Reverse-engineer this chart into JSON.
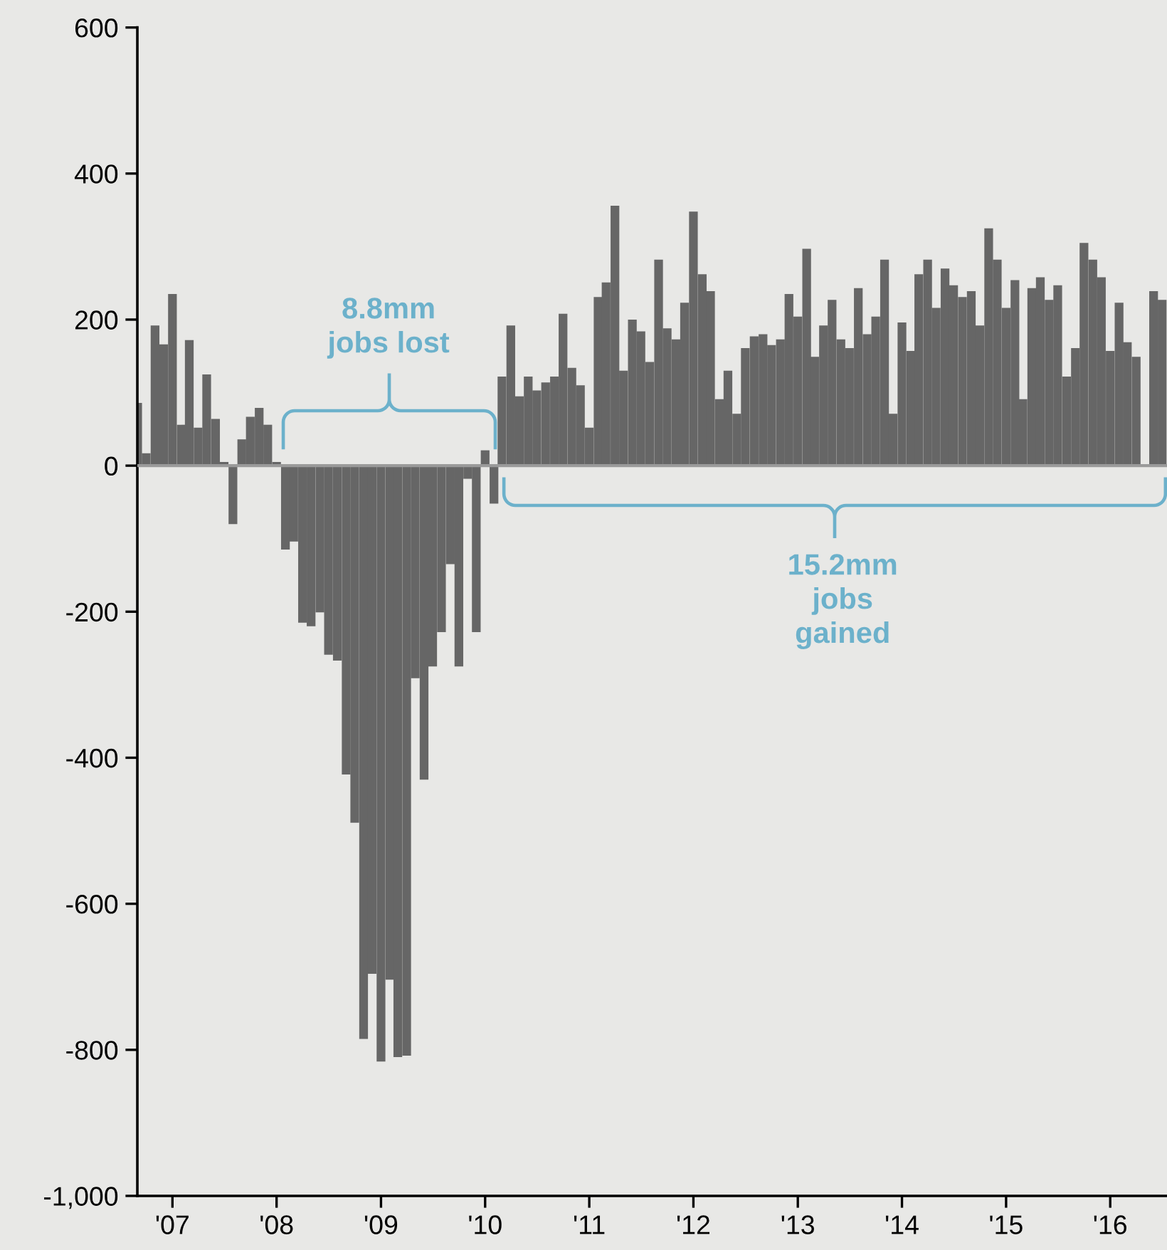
{
  "chart_data": {
    "type": "bar",
    "x": [
      "2006-09",
      "2006-10",
      "2006-11",
      "2006-12",
      "2007-01",
      "2007-02",
      "2007-03",
      "2007-04",
      "2007-05",
      "2007-06",
      "2007-07",
      "2007-08",
      "2007-09",
      "2007-10",
      "2007-11",
      "2007-12",
      "2008-01",
      "2008-02",
      "2008-03",
      "2008-04",
      "2008-05",
      "2008-06",
      "2008-07",
      "2008-08",
      "2008-09",
      "2008-10",
      "2008-11",
      "2008-12",
      "2009-01",
      "2009-02",
      "2009-03",
      "2009-04",
      "2009-05",
      "2009-06",
      "2009-07",
      "2009-08",
      "2009-09",
      "2009-10",
      "2009-11",
      "2009-12",
      "2010-01",
      "2010-02",
      "2010-03",
      "2010-04",
      "2010-05",
      "2010-06",
      "2010-07",
      "2010-08",
      "2010-09",
      "2010-10",
      "2010-11",
      "2010-12",
      "2011-01",
      "2011-02",
      "2011-03",
      "2011-04",
      "2011-05",
      "2011-06",
      "2011-07",
      "2011-08",
      "2011-09",
      "2011-10",
      "2011-11",
      "2011-12",
      "2012-01",
      "2012-02",
      "2012-03",
      "2012-04",
      "2012-05",
      "2012-06",
      "2012-07",
      "2012-08",
      "2012-09",
      "2012-10",
      "2012-11",
      "2012-12",
      "2013-01",
      "2013-02",
      "2013-03",
      "2013-04",
      "2013-05",
      "2013-06",
      "2013-07",
      "2013-08",
      "2013-09",
      "2013-10",
      "2013-11",
      "2013-12",
      "2014-01",
      "2014-02",
      "2014-03",
      "2014-04",
      "2014-05",
      "2014-06",
      "2014-07",
      "2014-08",
      "2014-09",
      "2014-10",
      "2014-11",
      "2014-12",
      "2015-01",
      "2015-02",
      "2015-03",
      "2015-04",
      "2015-05",
      "2015-06",
      "2015-07",
      "2015-08",
      "2015-09",
      "2015-10",
      "2015-11",
      "2015-12",
      "2016-01",
      "2016-02",
      "2016-03",
      "2016-04",
      "2016-05",
      "2016-06",
      "2016-07"
    ],
    "values": [
      86,
      17,
      192,
      166,
      235,
      56,
      172,
      52,
      125,
      64,
      5,
      -80,
      36,
      67,
      79,
      56,
      5,
      -115,
      -104,
      -215,
      -220,
      -201,
      -259,
      -267,
      -423,
      -489,
      -785,
      -696,
      -816,
      -704,
      -810,
      -808,
      -291,
      -430,
      -275,
      -228,
      -135,
      -275,
      -18,
      -228,
      21,
      -52,
      122,
      192,
      95,
      122,
      103,
      114,
      122,
      208,
      134,
      110,
      52,
      231,
      251,
      356,
      130,
      200,
      184,
      142,
      282,
      188,
      173,
      223,
      348,
      262,
      239,
      91,
      130,
      71,
      161,
      177,
      180,
      165,
      173,
      235,
      204,
      297,
      149,
      192,
      227,
      173,
      161,
      243,
      180,
      204,
      282,
      71,
      196,
      157,
      262,
      282,
      216,
      270,
      247,
      231,
      239,
      192,
      325,
      282,
      216,
      254,
      91,
      243,
      258,
      227,
      247,
      122,
      161,
      305,
      282,
      258,
      157,
      223,
      169,
      149,
      2,
      239,
      227
    ],
    "color": "#666666",
    "xlim": [
      "2006-08-31",
      "2016-07-18"
    ],
    "xticks": [
      {
        "value": "2007",
        "label": "'07"
      },
      {
        "value": "2008",
        "label": "'08"
      },
      {
        "value": "2009",
        "label": "'09"
      },
      {
        "value": "2010",
        "label": "'10"
      },
      {
        "value": "2011",
        "label": "'11"
      },
      {
        "value": "2012",
        "label": "'12"
      },
      {
        "value": "2013",
        "label": "'13"
      },
      {
        "value": "2014",
        "label": "'14"
      },
      {
        "value": "2015",
        "label": "'15"
      },
      {
        "value": "2016",
        "label": "'16"
      }
    ],
    "ylim": [
      -1000,
      600
    ],
    "yticks": [
      {
        "value": -1000,
        "label": "-1,000"
      },
      -800,
      -600,
      -400,
      -200,
      0,
      200,
      400,
      600
    ],
    "ref_lines": [
      {
        "axis": "y",
        "value": 0,
        "color": "#9a9a9a"
      }
    ],
    "annotations": [
      "8.8mm\njobs lost",
      "15.2mm\njobs\ngained"
    ],
    "grid": false,
    "legend": false
  }
}
